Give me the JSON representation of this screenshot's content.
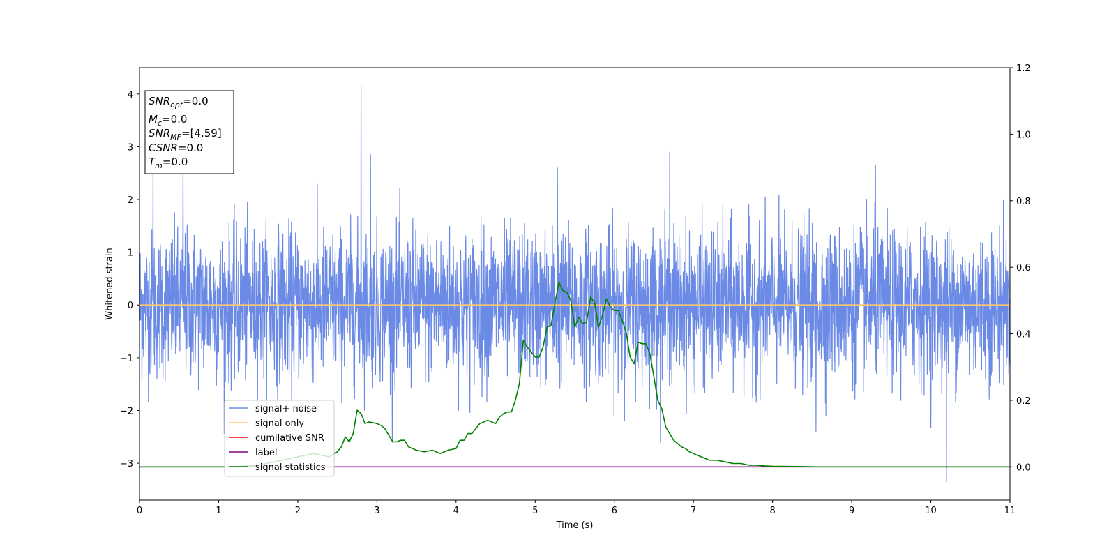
{
  "chart_data": {
    "type": "line",
    "xlabel": "Time (s)",
    "ylabel": "Whitened strain",
    "xlim": [
      0,
      11
    ],
    "ylim": [
      -3.7,
      4.5
    ],
    "y2lim": [
      -0.1,
      1.2
    ],
    "xticks": [
      "0",
      "1",
      "2",
      "3",
      "4",
      "5",
      "6",
      "7",
      "8",
      "9",
      "10",
      "11"
    ],
    "yticks": [
      "−3",
      "−2",
      "−1",
      "0",
      "1",
      "2",
      "3",
      "4"
    ],
    "y2ticks": [
      "0.0",
      "0.2",
      "0.4",
      "0.6",
      "0.8",
      "1.0",
      "1.2"
    ],
    "grid": false,
    "legend_position": "lower-left",
    "annotation": {
      "lines": [
        {
          "sym": "SNR",
          "sub": "opt",
          "rest": "=0.0"
        },
        {
          "sym": "M",
          "sub": "c",
          "rest": "=0.0"
        },
        {
          "sym": "SNR",
          "sub": "MF",
          "rest": "=[4.59]"
        },
        {
          "sym": "CSNR",
          "sub": "",
          "rest": "=0.0"
        },
        {
          "sym": "T",
          "sub": "m",
          "rest": "=0.0"
        }
      ]
    },
    "series": [
      {
        "name": "signal+ noise",
        "color": "#6b8ae6",
        "axis": "left",
        "kind": "noise",
        "noise_std": 0.7,
        "peaks": [
          [
            0.17,
            2.6
          ],
          [
            0.55,
            2.6
          ],
          [
            2.8,
            4.15
          ],
          [
            2.92,
            2.85
          ],
          [
            5.28,
            2.6
          ],
          [
            6.7,
            2.9
          ],
          [
            10.2,
            -3.35
          ],
          [
            9.3,
            2.65
          ],
          [
            8.55,
            -2.4
          ]
        ]
      },
      {
        "name": "signal only",
        "color": "#ffc870",
        "axis": "left",
        "x": [
          0,
          11
        ],
        "y": [
          0,
          0
        ]
      },
      {
        "name": "cumilative SNR",
        "color": "#ff0000",
        "axis": "left",
        "x": [],
        "y": []
      },
      {
        "name": "label",
        "color": "#800080",
        "axis": "right",
        "x": [
          0,
          11
        ],
        "y": [
          0,
          0
        ]
      },
      {
        "name": "signal statistics",
        "color": "#008000",
        "axis": "right",
        "x": [
          0,
          0.3,
          0.6,
          0.9,
          1.2,
          1.5,
          1.6,
          1.7,
          1.8,
          1.9,
          2.0,
          2.1,
          2.2,
          2.3,
          2.4,
          2.5,
          2.55,
          2.6,
          2.65,
          2.7,
          2.75,
          2.8,
          2.85,
          2.9,
          2.95,
          3.0,
          3.05,
          3.1,
          3.15,
          3.2,
          3.25,
          3.3,
          3.35,
          3.4,
          3.5,
          3.6,
          3.7,
          3.8,
          3.9,
          4.0,
          4.05,
          4.1,
          4.15,
          4.2,
          4.3,
          4.4,
          4.5,
          4.55,
          4.6,
          4.65,
          4.7,
          4.75,
          4.8,
          4.85,
          4.9,
          4.95,
          5.0,
          5.05,
          5.1,
          5.15,
          5.2,
          5.25,
          5.3,
          5.35,
          5.4,
          5.45,
          5.5,
          5.55,
          5.6,
          5.65,
          5.7,
          5.75,
          5.8,
          5.85,
          5.9,
          5.95,
          6.0,
          6.05,
          6.1,
          6.15,
          6.2,
          6.25,
          6.3,
          6.35,
          6.4,
          6.45,
          6.5,
          6.55,
          6.6,
          6.65,
          6.7,
          6.75,
          6.8,
          6.85,
          6.9,
          6.95,
          7.0,
          7.05,
          7.1,
          7.15,
          7.2,
          7.3,
          7.4,
          7.5,
          7.6,
          7.7,
          7.8,
          7.9,
          8.0,
          8.3,
          8.6,
          9.0,
          9.5,
          10.0,
          10.5,
          11.0
        ],
        "y": [
          0.0,
          0.0,
          0.0,
          0.0,
          0.0,
          0.005,
          0.01,
          0.015,
          0.02,
          0.025,
          0.03,
          0.035,
          0.04,
          0.035,
          0.03,
          0.045,
          0.06,
          0.09,
          0.075,
          0.1,
          0.17,
          0.16,
          0.13,
          0.135,
          0.133,
          0.13,
          0.125,
          0.115,
          0.095,
          0.075,
          0.075,
          0.08,
          0.08,
          0.06,
          0.05,
          0.045,
          0.05,
          0.04,
          0.05,
          0.055,
          0.08,
          0.08,
          0.1,
          0.1,
          0.13,
          0.14,
          0.13,
          0.15,
          0.16,
          0.165,
          0.165,
          0.2,
          0.25,
          0.38,
          0.36,
          0.345,
          0.33,
          0.33,
          0.36,
          0.42,
          0.425,
          0.49,
          0.555,
          0.53,
          0.525,
          0.5,
          0.42,
          0.45,
          0.43,
          0.435,
          0.51,
          0.495,
          0.42,
          0.455,
          0.505,
          0.48,
          0.47,
          0.47,
          0.44,
          0.405,
          0.33,
          0.31,
          0.375,
          0.37,
          0.37,
          0.34,
          0.27,
          0.2,
          0.175,
          0.12,
          0.1,
          0.08,
          0.07,
          0.06,
          0.055,
          0.045,
          0.04,
          0.035,
          0.03,
          0.025,
          0.02,
          0.02,
          0.015,
          0.01,
          0.01,
          0.005,
          0.005,
          0.003,
          0.002,
          0.001,
          0.0,
          0.0,
          0.0,
          0.0,
          0.0,
          0.0
        ]
      }
    ]
  }
}
